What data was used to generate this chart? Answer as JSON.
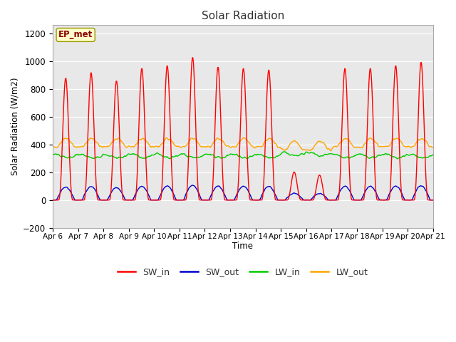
{
  "title": "Solar Radiation",
  "ylabel": "Solar Radiation (W/m2)",
  "xlabel": "Time",
  "ylim": [
    -200,
    1260
  ],
  "n_days": 15,
  "label_text": "EP_met",
  "colors": {
    "SW_in": "#ff0000",
    "SW_out": "#0000cc",
    "LW_in": "#00cc00",
    "LW_out": "#ffa500"
  },
  "x_tick_labels": [
    "Apr 6",
    "Apr 7",
    "Apr 8",
    "Apr 9",
    "Apr 10",
    "Apr 11",
    "Apr 12",
    "Apr 13",
    "Apr 14",
    "Apr 15",
    "Apr 16",
    "Apr 17",
    "Apr 18",
    "Apr 19",
    "Apr 20",
    "Apr 21"
  ],
  "y_ticks": [
    -200,
    0,
    200,
    400,
    600,
    800,
    1000,
    1200
  ],
  "plot_bg": "#e8e8e8",
  "fig_bg": "#ffffff",
  "grid_color": "#ffffff"
}
